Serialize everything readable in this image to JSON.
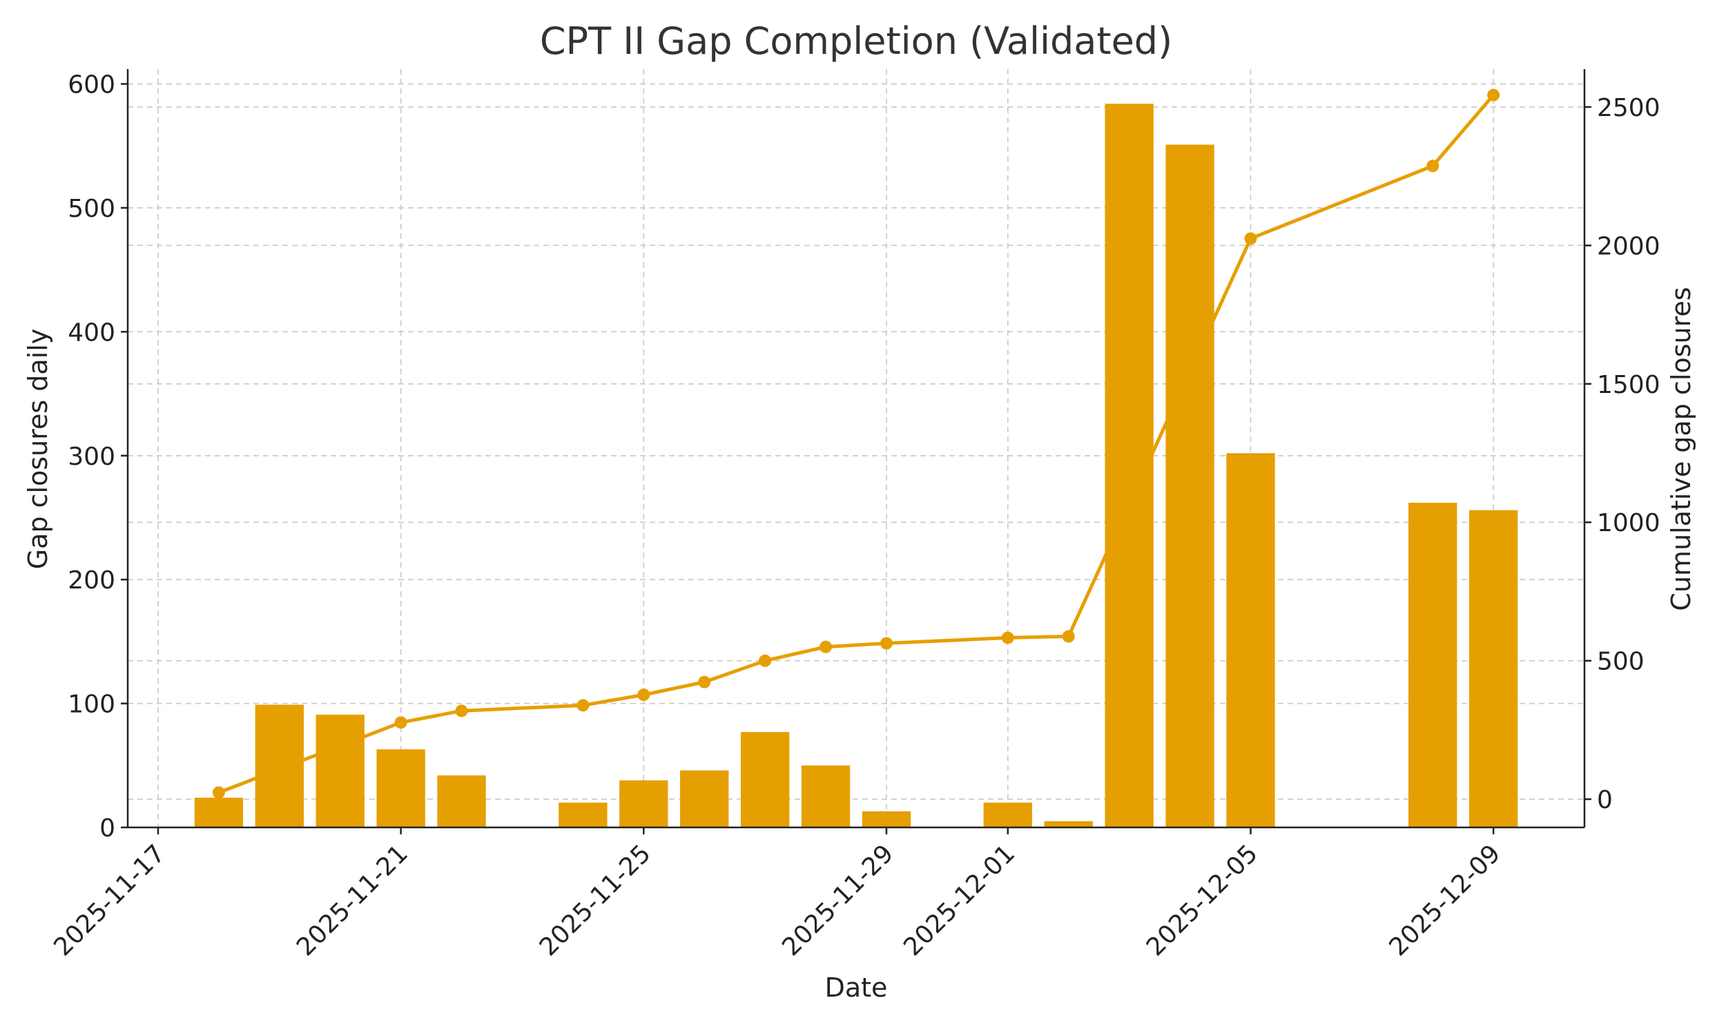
{
  "chart_data": {
    "type": "bar",
    "title": "CPT II Gap Completion (Validated)",
    "xlabel": "Date",
    "ylabel": "Gap closures daily",
    "y2label": "Cumulative gap closures",
    "ylim": [
      0,
      612
    ],
    "y2lim": [
      -102,
      2637
    ],
    "xlim": [
      "2025-11-16.5",
      "2025-12-10.5"
    ],
    "yticks": [
      0,
      100,
      200,
      300,
      400,
      500,
      600
    ],
    "y2ticks": [
      0,
      500,
      1000,
      1500,
      2000,
      2500
    ],
    "xticks": [
      "2025-11-17",
      "2025-11-21",
      "2025-11-25",
      "2025-11-29",
      "2025-12-01",
      "2025-12-05",
      "2025-12-09"
    ],
    "grid": true,
    "color": "#E69F00",
    "series": [
      {
        "type": "bar",
        "axis": "left",
        "x": [
          "2025-11-18",
          "2025-11-19",
          "2025-11-20",
          "2025-11-21",
          "2025-11-22",
          "2025-11-24",
          "2025-11-25",
          "2025-11-26",
          "2025-11-27",
          "2025-11-28",
          "2025-11-29",
          "2025-12-01",
          "2025-12-02",
          "2025-12-03",
          "2025-12-04",
          "2025-12-05",
          "2025-12-08",
          "2025-12-09"
        ],
        "values": [
          24,
          99,
          91,
          63,
          42,
          20,
          38,
          46,
          77,
          50,
          13,
          20,
          5,
          584,
          551,
          302,
          262,
          256
        ]
      },
      {
        "type": "line",
        "axis": "right",
        "x": [
          "2025-11-18",
          "2025-11-21",
          "2025-11-22",
          "2025-11-24",
          "2025-11-25",
          "2025-11-26",
          "2025-11-27",
          "2025-11-28",
          "2025-11-29",
          "2025-12-01",
          "2025-12-02",
          "2025-12-05",
          "2025-12-08",
          "2025-12-09"
        ],
        "values": [
          24,
          277,
          319,
          339,
          377,
          423,
          500,
          550,
          563,
          583,
          588,
          2025,
          2287,
          2543
        ]
      }
    ]
  }
}
